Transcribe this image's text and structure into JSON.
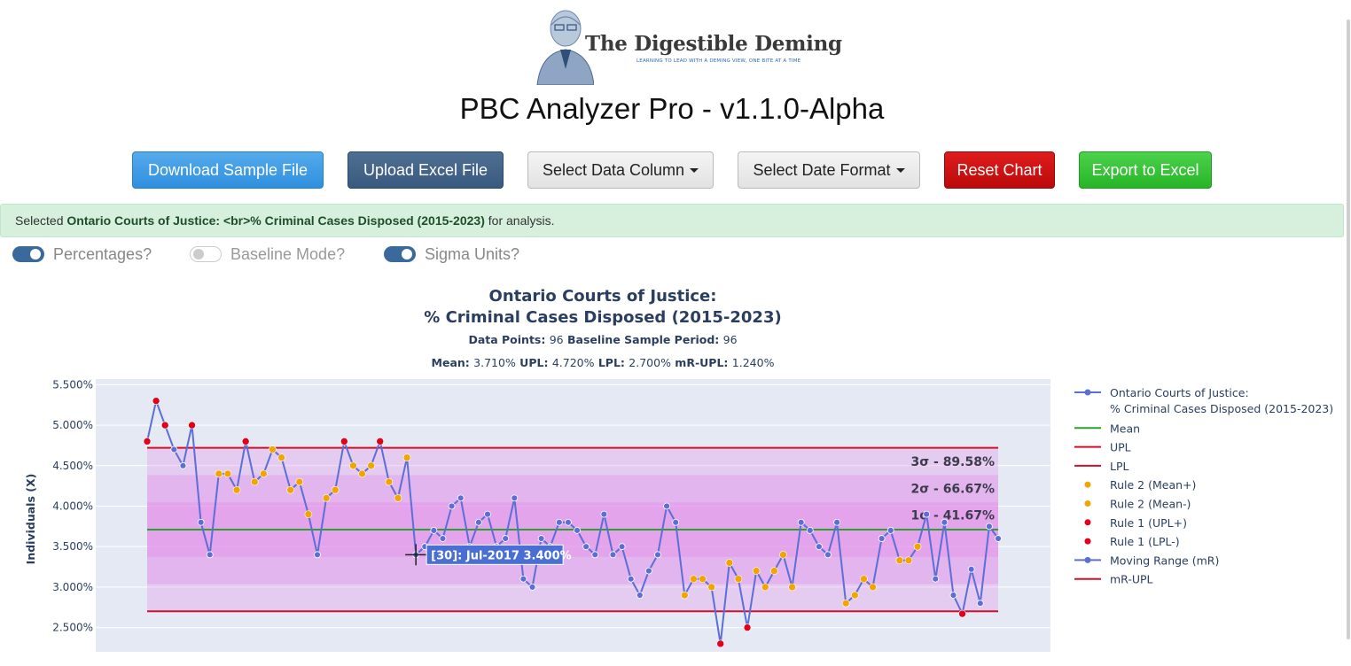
{
  "logo": {
    "brand": "The Digestible Deming",
    "tagline": "LEARNING TO LEAD WITH A DEMING VIEW, ONE BITE AT A TIME"
  },
  "app_title": "PBC Analyzer Pro - v1.1.0-Alpha",
  "toolbar": {
    "download_label": "Download Sample File",
    "upload_label": "Upload Excel File",
    "column_label": "Select Data Column",
    "date_label": "Select Date Format",
    "reset_label": "Reset Chart",
    "export_label": "Export to Excel"
  },
  "colors": {
    "download": "#3a9ae5",
    "upload": "#3f6088",
    "reset": "#c80f0f",
    "export": "#33c233",
    "alert_bg": "#d7f0dd"
  },
  "alert": {
    "prefix": "Selected ",
    "subject": "Ontario Courts of Justice: <br>% Criminal Cases Disposed (2015-2023)",
    "suffix": " for analysis."
  },
  "toggles": {
    "percentages": {
      "label": "Percentages?",
      "on": true
    },
    "baseline": {
      "label": "Baseline Mode?",
      "on": false
    },
    "sigma": {
      "label": "Sigma Units?",
      "on": true
    }
  },
  "chart_data": {
    "type": "line",
    "title_lines": [
      "Ontario Courts of Justice:",
      "% Criminal Cases Disposed (2015-2023)"
    ],
    "stats_line1": [
      {
        "label": "Data Points:",
        "value": "96"
      },
      {
        "label": "Baseline Sample Period:",
        "value": "96"
      }
    ],
    "stats_line2": [
      {
        "label": "Mean:",
        "value": "3.710%"
      },
      {
        "label": "UPL:",
        "value": "4.720%"
      },
      {
        "label": "LPL:",
        "value": "2.700%"
      },
      {
        "label": "mR-UPL:",
        "value": "1.240%"
      }
    ],
    "ylabel": "Individuals (X)",
    "yticks": [
      "5.500%",
      "5.000%",
      "4.500%",
      "4.000%",
      "3.500%",
      "3.000%",
      "2.500%"
    ],
    "ytick_values": [
      5.5,
      5.0,
      4.5,
      4.0,
      3.5,
      3.0,
      2.5
    ],
    "ylim": [
      2.2,
      5.57
    ],
    "mean": 3.71,
    "upl": 4.72,
    "lpl": 2.7,
    "sigma_bands": [
      {
        "label": "3σ - 89.58%",
        "at": 4.55
      },
      {
        "label": "2σ - 66.67%",
        "at": 4.22
      },
      {
        "label": "1σ - 41.67%",
        "at": 3.89
      }
    ],
    "series_name": "Ontario Courts of Justice:\n% Criminal Cases Disposed (2015-2023)",
    "values": [
      4.8,
      5.3,
      5.0,
      4.7,
      4.5,
      5.0,
      3.8,
      3.4,
      4.4,
      4.4,
      4.2,
      4.8,
      4.3,
      4.4,
      4.7,
      4.6,
      4.2,
      4.3,
      3.9,
      3.4,
      4.1,
      4.2,
      4.8,
      4.5,
      4.4,
      4.5,
      4.8,
      4.3,
      4.1,
      4.6,
      3.4,
      3.5,
      3.7,
      3.6,
      4.0,
      4.1,
      3.5,
      3.8,
      3.9,
      3.5,
      3.6,
      4.1,
      3.1,
      3.0,
      3.6,
      3.5,
      3.8,
      3.8,
      3.7,
      3.5,
      3.4,
      3.9,
      3.4,
      3.5,
      3.1,
      2.9,
      3.2,
      3.4,
      4.0,
      3.8,
      2.9,
      3.1,
      3.1,
      3.0,
      2.3,
      3.3,
      3.1,
      2.5,
      3.2,
      3.0,
      3.2,
      3.4,
      3.0,
      3.8,
      3.7,
      3.5,
      3.4,
      3.8,
      2.8,
      2.9,
      3.1,
      3.0,
      3.6,
      3.7,
      3.33,
      3.33,
      3.5,
      3.9,
      3.1,
      3.8,
      2.9,
      2.67,
      3.22,
      2.8,
      3.75,
      3.6
    ],
    "rule_flags": {
      "upl_plus": [
        0,
        1,
        2,
        5,
        11,
        22,
        26
      ],
      "lpl_minus": [
        64,
        67,
        91
      ],
      "mean_plus": [
        8,
        9,
        10,
        12,
        13,
        14,
        15,
        16,
        17,
        18,
        20,
        21,
        23,
        24,
        25,
        27,
        28,
        29
      ],
      "mean_minus": [
        60,
        61,
        62,
        63,
        65,
        66,
        68,
        69,
        70,
        71,
        72,
        78,
        79,
        80,
        81,
        84,
        85,
        86
      ]
    },
    "tooltip": {
      "index": 30,
      "text": "[30]: Jul-2017 3.400%"
    },
    "legend": {
      "position": "right",
      "items": [
        {
          "label": "Ontario Courts of Justice:\n% Criminal Cases Disposed (2015-2023)",
          "kind": "line-marker",
          "color": "#5b6fd6"
        },
        {
          "label": "Mean",
          "kind": "line",
          "color": "#2ca02c"
        },
        {
          "label": "UPL",
          "kind": "line",
          "color": "#d0102a"
        },
        {
          "label": "LPL",
          "kind": "line",
          "color": "#d0102a"
        },
        {
          "label": "Rule 2 (Mean+)",
          "kind": "marker",
          "color": "#f0a500"
        },
        {
          "label": "Rule 2 (Mean-)",
          "kind": "marker",
          "color": "#f0a500"
        },
        {
          "label": "Rule 1 (UPL+)",
          "kind": "marker",
          "color": "#e0001a"
        },
        {
          "label": "Rule 1 (LPL-)",
          "kind": "marker",
          "color": "#e0001a"
        },
        {
          "label": "Moving Range (mR)",
          "kind": "line-marker",
          "color": "#5b6fd6"
        },
        {
          "label": "mR-UPL",
          "kind": "line",
          "color": "#d0102a"
        }
      ]
    },
    "colors": {
      "line": "#5b6fd6",
      "mean": "#2ca02c",
      "limits": "#d0102a",
      "rule2": "#f0a500",
      "rule1": "#e0001a",
      "plot_bg": "#e5e9f3",
      "band": "#e27fe8"
    }
  }
}
